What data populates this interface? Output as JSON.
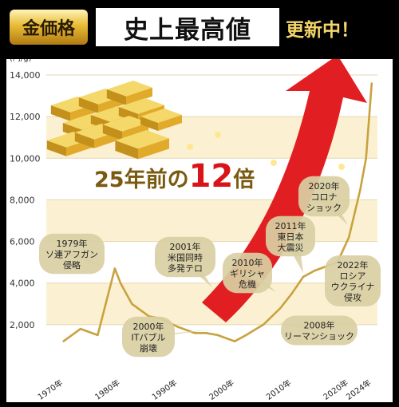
{
  "header": {
    "badge": "金価格",
    "headline": "史上最高値",
    "updating": "更新中！"
  },
  "chart_data": {
    "type": "line",
    "unit_label": "(円/g)",
    "ylim": [
      0,
      14000
    ],
    "y_ticks": [
      {
        "value": 2000,
        "label": "2,000"
      },
      {
        "value": 4000,
        "label": "4,000"
      },
      {
        "value": 6000,
        "label": "6,000"
      },
      {
        "value": 8000,
        "label": "8,000"
      },
      {
        "value": 10000,
        "label": "10,000"
      },
      {
        "value": 12000,
        "label": "12,000"
      },
      {
        "value": 14000,
        "label": "14,000"
      }
    ],
    "x_ticks": [
      {
        "value": 1970,
        "label": "1970年"
      },
      {
        "value": 1980,
        "label": "1980年"
      },
      {
        "value": 1990,
        "label": "1990年"
      },
      {
        "value": 2000,
        "label": "2000年"
      },
      {
        "value": 2010,
        "label": "2010年"
      },
      {
        "value": 2020,
        "label": "2020年"
      },
      {
        "value": 2024,
        "label": "2024年"
      }
    ],
    "x": [
      1970,
      1973,
      1976,
      1979,
      1980,
      1982,
      1985,
      1987,
      1990,
      1993,
      1995,
      1997,
      2000,
      2002,
      2005,
      2008,
      2010,
      2012,
      2014,
      2016,
      2018,
      2020,
      2022,
      2023,
      2024
    ],
    "y": [
      1200,
      1800,
      1500,
      4700,
      4000,
      3000,
      2400,
      2300,
      1900,
      1600,
      1600,
      1500,
      1200,
      1500,
      2000,
      2800,
      3500,
      4300,
      4600,
      4800,
      5000,
      6200,
      8500,
      10000,
      13600
    ],
    "line_color": "#c9a23f",
    "arrow_color": "#e0161a",
    "headline_text": {
      "prefix": "25年前の",
      "number": "12",
      "suffix": "倍"
    },
    "annotations": [
      {
        "id": "1979",
        "lines": [
          "1979年",
          "ソ連アフガン",
          "侵略"
        ]
      },
      {
        "id": "2000it",
        "lines": [
          "2000年",
          "ITバブル",
          "崩壊"
        ]
      },
      {
        "id": "2001",
        "lines": [
          "2001年",
          "米国同時",
          "多発テロ"
        ]
      },
      {
        "id": "2010",
        "lines": [
          "2010年",
          "ギリシャ",
          "危機"
        ]
      },
      {
        "id": "2008",
        "lines": [
          "2008年",
          "リーマンショック"
        ]
      },
      {
        "id": "2011",
        "lines": [
          "2011年",
          "東日本",
          "大震災"
        ]
      },
      {
        "id": "2020",
        "lines": [
          "2020年",
          "コロナ",
          "ショック"
        ]
      },
      {
        "id": "2022",
        "lines": [
          "2022年",
          "ロシア",
          "ウクライナ",
          "侵攻"
        ]
      }
    ]
  }
}
